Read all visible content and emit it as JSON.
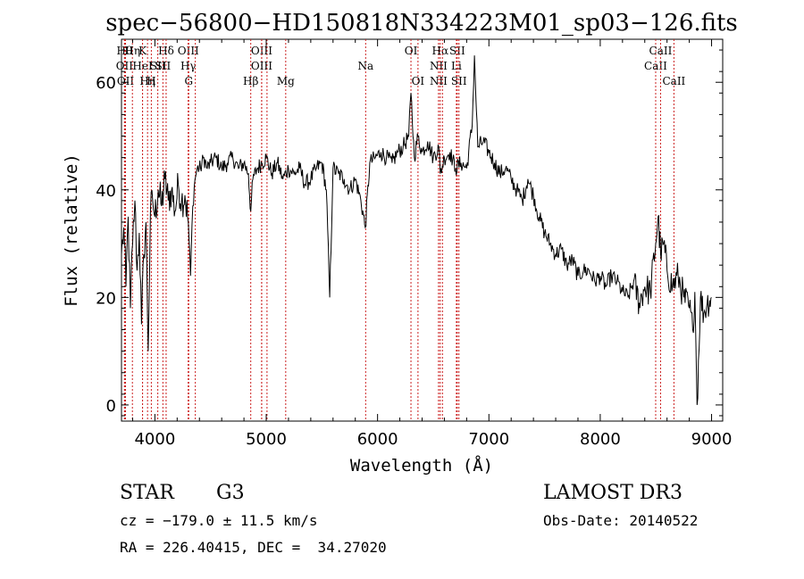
{
  "chart_data": {
    "type": "line",
    "title": "spec−56800−HD150818N334223M01_sp03−126.fits",
    "xlabel": "Wavelength (Å)",
    "ylabel": "Flux (relative)",
    "xlim": [
      3700,
      9100
    ],
    "ylim": [
      -3,
      68
    ],
    "x_ticks": [
      4000,
      5000,
      6000,
      7000,
      8000,
      9000
    ],
    "x_tick_labels": [
      "4000",
      "5000",
      "6000",
      "7000",
      "8000",
      "9000"
    ],
    "y_ticks": [
      0,
      20,
      40,
      60
    ],
    "y_tick_labels": [
      "0",
      "20",
      "40",
      "60"
    ],
    "grid": false,
    "line_color": "#000000",
    "marker_color": "#cc2222",
    "series": [
      {
        "x": [
          3700,
          3720,
          3740,
          3760,
          3780,
          3800,
          3820,
          3840,
          3860,
          3880,
          3900,
          3920,
          3940,
          3960,
          3980,
          4000,
          4030,
          4060,
          4090,
          4120,
          4150,
          4180,
          4210,
          4240,
          4270,
          4300,
          4320,
          4340,
          4360,
          4380,
          4410,
          4440,
          4470,
          4500,
          4550,
          4600,
          4650,
          4700,
          4750,
          4800,
          4840,
          4861,
          4880,
          4920,
          4960,
          5000,
          5050,
          5100,
          5150,
          5200,
          5250,
          5300,
          5350,
          5400,
          5450,
          5500,
          5540,
          5570,
          5600,
          5650,
          5700,
          5750,
          5800,
          5850,
          5890,
          5930,
          5980,
          6030,
          6080,
          6130,
          6180,
          6230,
          6280,
          6300,
          6330,
          6363,
          6400,
          6450,
          6500,
          6550,
          6563,
          6600,
          6650,
          6700,
          6750,
          6800,
          6850,
          6870,
          6900,
          6950,
          7000,
          7050,
          7100,
          7150,
          7200,
          7250,
          7300,
          7350,
          7400,
          7450,
          7500,
          7550,
          7600,
          7650,
          7700,
          7750,
          7800,
          7850,
          7900,
          7950,
          8000,
          8050,
          8100,
          8150,
          8200,
          8250,
          8300,
          8350,
          8400,
          8450,
          8498,
          8520,
          8542,
          8570,
          8600,
          8650,
          8700,
          8750,
          8800,
          8830,
          8850,
          8870,
          8900,
          8930,
          8960,
          9000
        ],
        "y": [
          28,
          33,
          22,
          35,
          18,
          30,
          38,
          25,
          32,
          15,
          28,
          34,
          10,
          36,
          38,
          35,
          40,
          37,
          42,
          38,
          40,
          36,
          41,
          38,
          39,
          34,
          24,
          37,
          42,
          44,
          44,
          46,
          44,
          45,
          46,
          44,
          45,
          46,
          44,
          45,
          43,
          36,
          42,
          44,
          45,
          46,
          43,
          45,
          42,
          44,
          43,
          44,
          41,
          42,
          44,
          45,
          40,
          20,
          44,
          43,
          42,
          40,
          42,
          38,
          33,
          45,
          46,
          47,
          46,
          45,
          47,
          48,
          50,
          58,
          46,
          50,
          47,
          49,
          46,
          48,
          43,
          46,
          47,
          44,
          45,
          44,
          52,
          65,
          48,
          49,
          47,
          45,
          43,
          44,
          42,
          40,
          38,
          42,
          39,
          35,
          32,
          30,
          28,
          29,
          26,
          27,
          24,
          25,
          25,
          23,
          24,
          22,
          24,
          23,
          21,
          20,
          23,
          19,
          22,
          21,
          30,
          35,
          28,
          30,
          25,
          22,
          24,
          20,
          18,
          14,
          21,
          0,
          20,
          17,
          19,
          20
        ]
      }
    ],
    "line_markers": [
      {
        "wl": 3727,
        "row": 1,
        "label": "Hθ"
      },
      {
        "wl": 3727,
        "row": 2,
        "label": "OII"
      },
      {
        "wl": 3736,
        "row": 3,
        "label": "OII"
      },
      {
        "wl": 3798,
        "row": 1,
        "label": "Hη"
      },
      {
        "wl": 3889,
        "row": 1,
        "label": "K"
      },
      {
        "wl": 3889,
        "row": 2,
        "label": "HeI"
      },
      {
        "wl": 3934,
        "row": 3,
        "label": "Hη"
      },
      {
        "wl": 3968,
        "row": 3,
        "label": "H"
      },
      {
        "wl": 4026,
        "row": 2,
        "label": "SII"
      },
      {
        "wl": 4101,
        "row": 1,
        "label": "Hδ"
      },
      {
        "wl": 4072,
        "row": 2,
        "label": "SII"
      },
      {
        "wl": 4300,
        "row": 1,
        "label": "OIII"
      },
      {
        "wl": 4300,
        "row": 2,
        "label": "Hγ"
      },
      {
        "wl": 4304,
        "row": 3,
        "label": "G"
      },
      {
        "wl": 4363,
        "row": 1,
        "label": ""
      },
      {
        "wl": 4861,
        "row": 3,
        "label": "Hβ"
      },
      {
        "wl": 4959,
        "row": 1,
        "label": "OIII"
      },
      {
        "wl": 4959,
        "row": 2,
        "label": "OIII"
      },
      {
        "wl": 5007,
        "row": 2,
        "label": ""
      },
      {
        "wl": 5175,
        "row": 3,
        "label": "Mg"
      },
      {
        "wl": 5893,
        "row": 2,
        "label": "Na"
      },
      {
        "wl": 6300,
        "row": 1,
        "label": "OI"
      },
      {
        "wl": 6363,
        "row": 3,
        "label": "OI"
      },
      {
        "wl": 6548,
        "row": 2,
        "label": "NII"
      },
      {
        "wl": 6548,
        "row": 3,
        "label": "NII"
      },
      {
        "wl": 6563,
        "row": 1,
        "label": "Hα"
      },
      {
        "wl": 6583,
        "row": 3,
        "label": ""
      },
      {
        "wl": 6708,
        "row": 2,
        "label": "Li"
      },
      {
        "wl": 6716,
        "row": 1,
        "label": "SII"
      },
      {
        "wl": 6731,
        "row": 3,
        "label": "SII"
      },
      {
        "wl": 8498,
        "row": 2,
        "label": "CaII"
      },
      {
        "wl": 8542,
        "row": 1,
        "label": "CaII"
      },
      {
        "wl": 8662,
        "row": 3,
        "label": "CaII"
      }
    ]
  },
  "info": {
    "class": "STAR",
    "subclass": "G3",
    "survey": "LAMOST DR3",
    "cz": "cz = −179.0 ± 11.5 km/s",
    "obs_date": "Obs-Date: 20140522",
    "radec": "RA = 226.40415, DEC =  34.27020"
  }
}
